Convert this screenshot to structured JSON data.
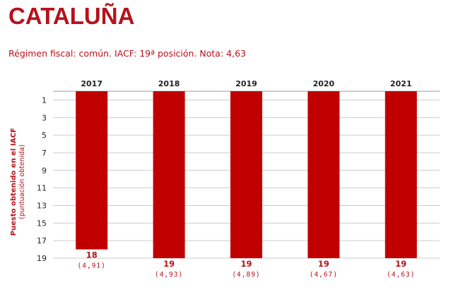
{
  "title": "CATALUÑA",
  "subtitle": "Régimen fiscal: común. IACF: 19ª posición. Nota: 4,63",
  "ylabel_line1": "Puesto obtenido en el IACF",
  "ylabel_line2": "(puntuación obtenida)",
  "colors": {
    "accent": "#b5121b",
    "bar": "#c00000",
    "grid": "#cccccc"
  },
  "chart_data": {
    "type": "bar",
    "categories": [
      "2017",
      "2018",
      "2019",
      "2020",
      "2021"
    ],
    "values": [
      18,
      19,
      19,
      19,
      19
    ],
    "value_labels": [
      "18",
      "19",
      "19",
      "19",
      "19"
    ],
    "score_labels": [
      "(4,91)",
      "(4,93)",
      "(4,89)",
      "(4,67)",
      "(4,63)"
    ],
    "ylabel": "Puesto obtenido en el IACF",
    "ylim": [
      0,
      19
    ],
    "yticks": [
      1,
      3,
      5,
      7,
      9,
      11,
      13,
      15,
      17,
      19
    ],
    "y_inverted": true,
    "grid": true,
    "xaxis_position": "top"
  }
}
